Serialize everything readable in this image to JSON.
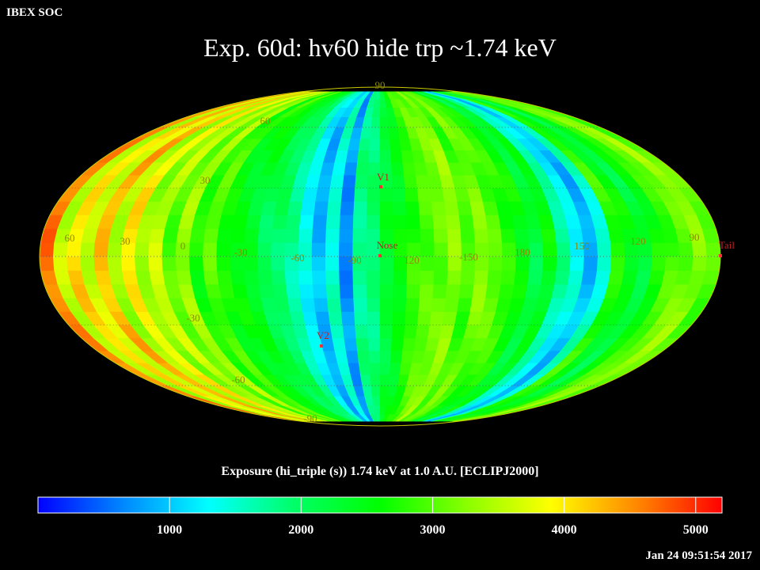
{
  "header": {
    "corner_label": "IBEX SOC",
    "title": "Exp.   60d: hv60 hide trp ~1.74 keV",
    "timestamp": "Jan 24 09:51:54 2017"
  },
  "colorbar": {
    "title": "Exposure (hi_triple (s))  1.74 keV at 1.0 A.U. [ECLIPJ2000]",
    "min": 0,
    "max": 5200,
    "ticks": [
      "1000",
      "2000",
      "3000",
      "4000",
      "5000"
    ],
    "tick_values": [
      1000,
      2000,
      3000,
      4000,
      5000
    ],
    "stops": [
      "#0000ff",
      "#0088ff",
      "#00ffff",
      "#00ff66",
      "#00ff00",
      "#88ff00",
      "#ffff00",
      "#ff8800",
      "#ff0000"
    ]
  },
  "chart_data": {
    "type": "heatmap",
    "projection": "Mollweide (Aitoff-Hammer sky map)",
    "longitude_labels": [
      "60",
      "30",
      "0",
      "-30",
      "-60",
      "-90",
      "120",
      "-150",
      "180",
      "150",
      "120",
      "90"
    ],
    "latitude_labels": [
      "90",
      "60",
      "30",
      "-30",
      "-60",
      "-90"
    ],
    "markers": [
      {
        "label": "V1",
        "lon": -105,
        "lat": 35
      },
      {
        "label": "Nose",
        "lon": -105,
        "lat": 5
      },
      {
        "label": "V2",
        "lon": -75,
        "lat": -34
      },
      {
        "label": "Tail",
        "lon": 75,
        "lat": -5
      }
    ],
    "colorbar_ticks": [
      1000,
      2000,
      3000,
      4000,
      5000
    ],
    "column_exposure": [
      4600,
      3500,
      4100,
      3600,
      4300,
      3400,
      4000,
      3300,
      3600,
      3000,
      3400,
      2700,
      3000,
      2600,
      2500,
      2400,
      2100,
      2000,
      1700,
      1300,
      900,
      1500,
      700,
      1800,
      1900,
      2300,
      2500,
      2800,
      3000,
      3100,
      3300,
      2900,
      3200,
      3000,
      2800,
      2600,
      2200,
      2500,
      1700,
      1300,
      900,
      1500,
      2800,
      2500,
      2200,
      2600,
      2900,
      3100,
      3300,
      3000
    ],
    "grid": true
  }
}
